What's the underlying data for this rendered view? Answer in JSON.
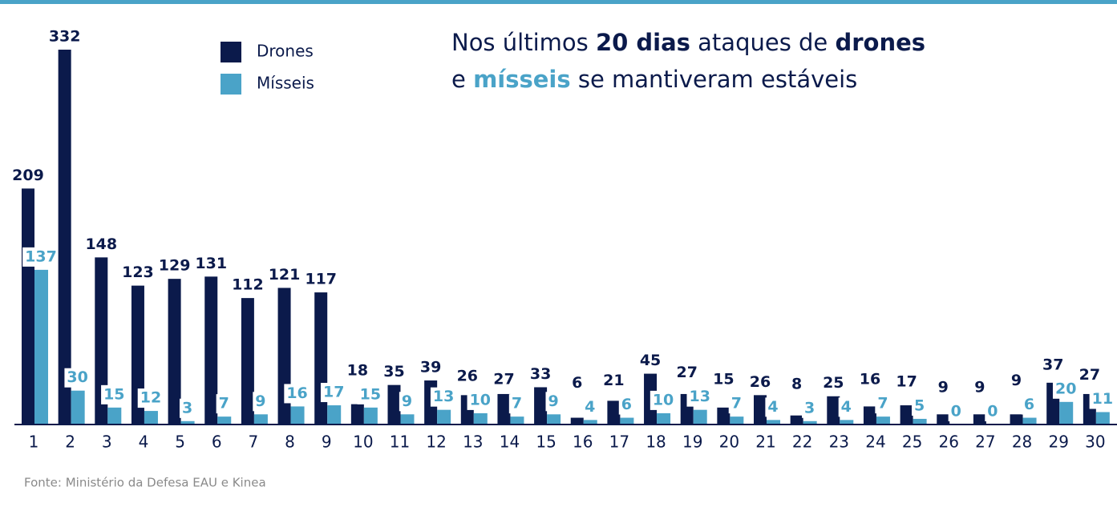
{
  "chart_data": {
    "type": "bar",
    "title": [
      [
        "Nos últimos ",
        "20 dias",
        " ataques de ",
        "drones"
      ],
      [
        "e ",
        "mísseis",
        " se mantiveram estáveis"
      ]
    ],
    "categories": [
      "1",
      "2",
      "3",
      "4",
      "5",
      "6",
      "7",
      "8",
      "9",
      "10",
      "11",
      "12",
      "13",
      "14",
      "15",
      "16",
      "17",
      "18",
      "19",
      "20",
      "21",
      "22",
      "23",
      "24",
      "25",
      "26",
      "27",
      "28",
      "29",
      "30"
    ],
    "series": [
      {
        "name": "Drones",
        "color": "#0b1a4b",
        "values": [
          209,
          332,
          148,
          123,
          129,
          131,
          112,
          121,
          117,
          18,
          35,
          39,
          26,
          27,
          33,
          6,
          21,
          45,
          27,
          15,
          26,
          8,
          25,
          16,
          17,
          9,
          9,
          9,
          37,
          27
        ]
      },
      {
        "name": "Mísseis",
        "color": "#4aa3c8",
        "values": [
          137,
          30,
          15,
          12,
          3,
          7,
          9,
          16,
          17,
          15,
          9,
          13,
          10,
          7,
          9,
          4,
          6,
          10,
          13,
          7,
          4,
          3,
          4,
          7,
          5,
          0,
          0,
          6,
          20,
          11
        ]
      }
    ],
    "source": "Fonte: Ministério da Defesa EAU e Kinea"
  }
}
